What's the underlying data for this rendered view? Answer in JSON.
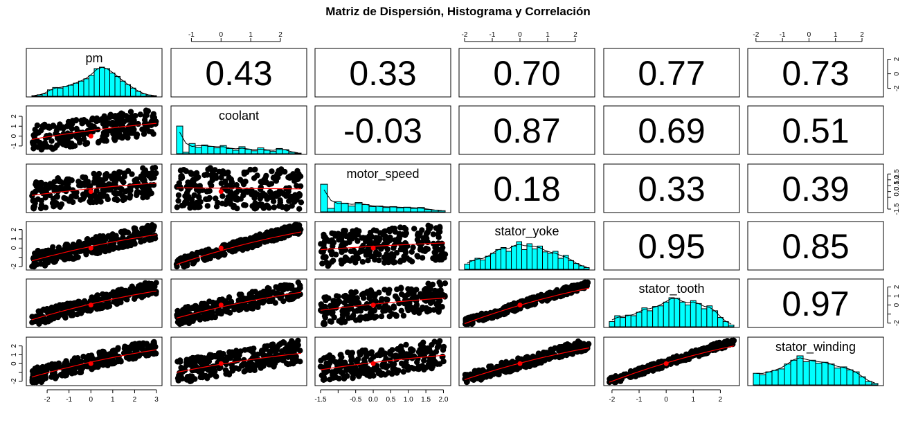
{
  "title": "Matriz de Dispersión, Histograma y Correlación",
  "chart_data": {
    "type": "scatter",
    "variables": [
      "pm",
      "coolant",
      "motor_speed",
      "stator_yoke",
      "stator_tooth",
      "stator_winding"
    ],
    "correlations": [
      {
        "row": 0,
        "col": 1,
        "value": "0.43"
      },
      {
        "row": 0,
        "col": 2,
        "value": "0.33"
      },
      {
        "row": 0,
        "col": 3,
        "value": "0.70"
      },
      {
        "row": 0,
        "col": 4,
        "value": "0.77"
      },
      {
        "row": 0,
        "col": 5,
        "value": "0.73"
      },
      {
        "row": 1,
        "col": 2,
        "value": "-0.03"
      },
      {
        "row": 1,
        "col": 3,
        "value": "0.87"
      },
      {
        "row": 1,
        "col": 4,
        "value": "0.69"
      },
      {
        "row": 1,
        "col": 5,
        "value": "0.51"
      },
      {
        "row": 2,
        "col": 3,
        "value": "0.18"
      },
      {
        "row": 2,
        "col": 4,
        "value": "0.33"
      },
      {
        "row": 2,
        "col": 5,
        "value": "0.39"
      },
      {
        "row": 3,
        "col": 4,
        "value": "0.95"
      },
      {
        "row": 3,
        "col": 5,
        "value": "0.85"
      },
      {
        "row": 4,
        "col": 5,
        "value": "0.97"
      }
    ],
    "ranges": {
      "pm": [
        -2.7,
        3.0
      ],
      "coolant": [
        -1.5,
        2.7
      ],
      "motor_speed": [
        -1.5,
        2.05
      ],
      "stator_yoke": [
        -2.0,
        2.5
      ],
      "stator_tooth": [
        -2.1,
        2.5
      ],
      "stator_winding": [
        -2.1,
        2.6
      ]
    },
    "histograms": {
      "pm": [
        0.02,
        0.05,
        0.08,
        0.22,
        0.3,
        0.28,
        0.34,
        0.38,
        0.45,
        0.52,
        0.6,
        0.72,
        0.95,
        1.0,
        0.95,
        0.8,
        0.68,
        0.52,
        0.4,
        0.28,
        0.17,
        0.08,
        0.04,
        0.02
      ],
      "coolant": [
        0.95,
        0.05,
        0.35,
        0.22,
        0.3,
        0.25,
        0.2,
        0.28,
        0.18,
        0.12,
        0.24,
        0.15,
        0.1,
        0.2,
        0.12,
        0.08,
        0.18,
        0.14,
        0.05,
        0.02
      ],
      "motor_speed": [
        0.95,
        0.12,
        0.35,
        0.3,
        0.2,
        0.32,
        0.25,
        0.18,
        0.2,
        0.15,
        0.18,
        0.14,
        0.16,
        0.12,
        0.15,
        0.08,
        0.06,
        0.04
      ],
      "stator_yoke": [
        0.18,
        0.3,
        0.38,
        0.32,
        0.45,
        0.55,
        0.68,
        0.75,
        0.62,
        0.8,
        0.95,
        0.68,
        0.88,
        0.7,
        0.8,
        0.6,
        0.55,
        0.62,
        0.38,
        0.48,
        0.3,
        0.2,
        0.12,
        0.06
      ],
      "stator_tooth": [
        0.18,
        0.38,
        0.32,
        0.4,
        0.38,
        0.5,
        0.65,
        0.55,
        0.7,
        0.72,
        0.85,
        1.0,
        0.98,
        0.85,
        0.75,
        0.9,
        0.8,
        0.62,
        0.72,
        0.55,
        0.32,
        0.18,
        0.06
      ],
      "stator_winding": [
        0.4,
        0.35,
        0.45,
        0.5,
        0.55,
        0.72,
        0.85,
        1.0,
        0.8,
        0.85,
        0.75,
        0.78,
        0.72,
        0.58,
        0.62,
        0.52,
        0.45,
        0.28,
        0.12,
        0.05
      ]
    },
    "axes": {
      "top": [
        {
          "col": 1,
          "ticks": [
            "-1",
            "0",
            "1",
            "2"
          ],
          "values": [
            -1,
            0,
            1,
            2
          ]
        },
        {
          "col": 3,
          "ticks": [
            "-2",
            "-1",
            "0",
            "1",
            "2"
          ],
          "values": [
            -2,
            -1,
            0,
            1,
            2
          ]
        },
        {
          "col": 5,
          "ticks": [
            "-2",
            "-1",
            "0",
            "1",
            "2"
          ],
          "values": [
            -2,
            -1,
            0,
            1,
            2
          ]
        }
      ],
      "bottom": [
        {
          "col": 0,
          "ticks": [
            "-2",
            "-1",
            "0",
            "1",
            "2",
            "3"
          ],
          "values": [
            -2,
            -1,
            0,
            1,
            2,
            3
          ]
        },
        {
          "col": 2,
          "ticks": [
            "-1.5",
            "-0.5",
            "0.0",
            "0.5",
            "1.0",
            "1.5",
            "2.0"
          ],
          "values": [
            -1.5,
            -0.5,
            0,
            0.5,
            1.0,
            1.5,
            2.0
          ],
          "minor": [
            -1.0
          ]
        },
        {
          "col": 4,
          "ticks": [
            "-2",
            "-1",
            "0",
            "1",
            "2"
          ],
          "values": [
            -2,
            -1,
            0,
            1,
            2
          ]
        }
      ],
      "left": [
        {
          "row": 1,
          "ticks": [
            "-1",
            "0",
            "1",
            "2"
          ],
          "values": [
            -1,
            0,
            1,
            2
          ]
        },
        {
          "row": 3,
          "ticks": [
            "-2",
            "0",
            "1",
            "2"
          ],
          "values": [
            -2,
            0,
            1,
            2
          ],
          "minor": [
            -1
          ]
        },
        {
          "row": 5,
          "ticks": [
            "-2",
            "0",
            "1",
            "2"
          ],
          "values": [
            -2,
            0,
            1,
            2
          ],
          "minor": [
            -1
          ]
        }
      ],
      "right": [
        {
          "row": 0,
          "ticks": [
            "-2",
            "0",
            "2"
          ],
          "values": [
            -2,
            0,
            2
          ]
        },
        {
          "row": 2,
          "ticks": [
            "-1.5",
            "0.0",
            "0.5",
            "1.0",
            "1.5"
          ],
          "values": [
            -1.5,
            0,
            0.5,
            1.0,
            1.5
          ],
          "minor": [
            -0.5
          ]
        },
        {
          "row": 4,
          "ticks": [
            "-2",
            "0",
            "1",
            "2"
          ],
          "values": [
            -2,
            0,
            1,
            2
          ],
          "minor": [
            -1
          ]
        }
      ]
    }
  },
  "colors": {
    "histogram_fill": "#00FFFF",
    "smooth_line": "#FF0000",
    "points": "#000000"
  }
}
